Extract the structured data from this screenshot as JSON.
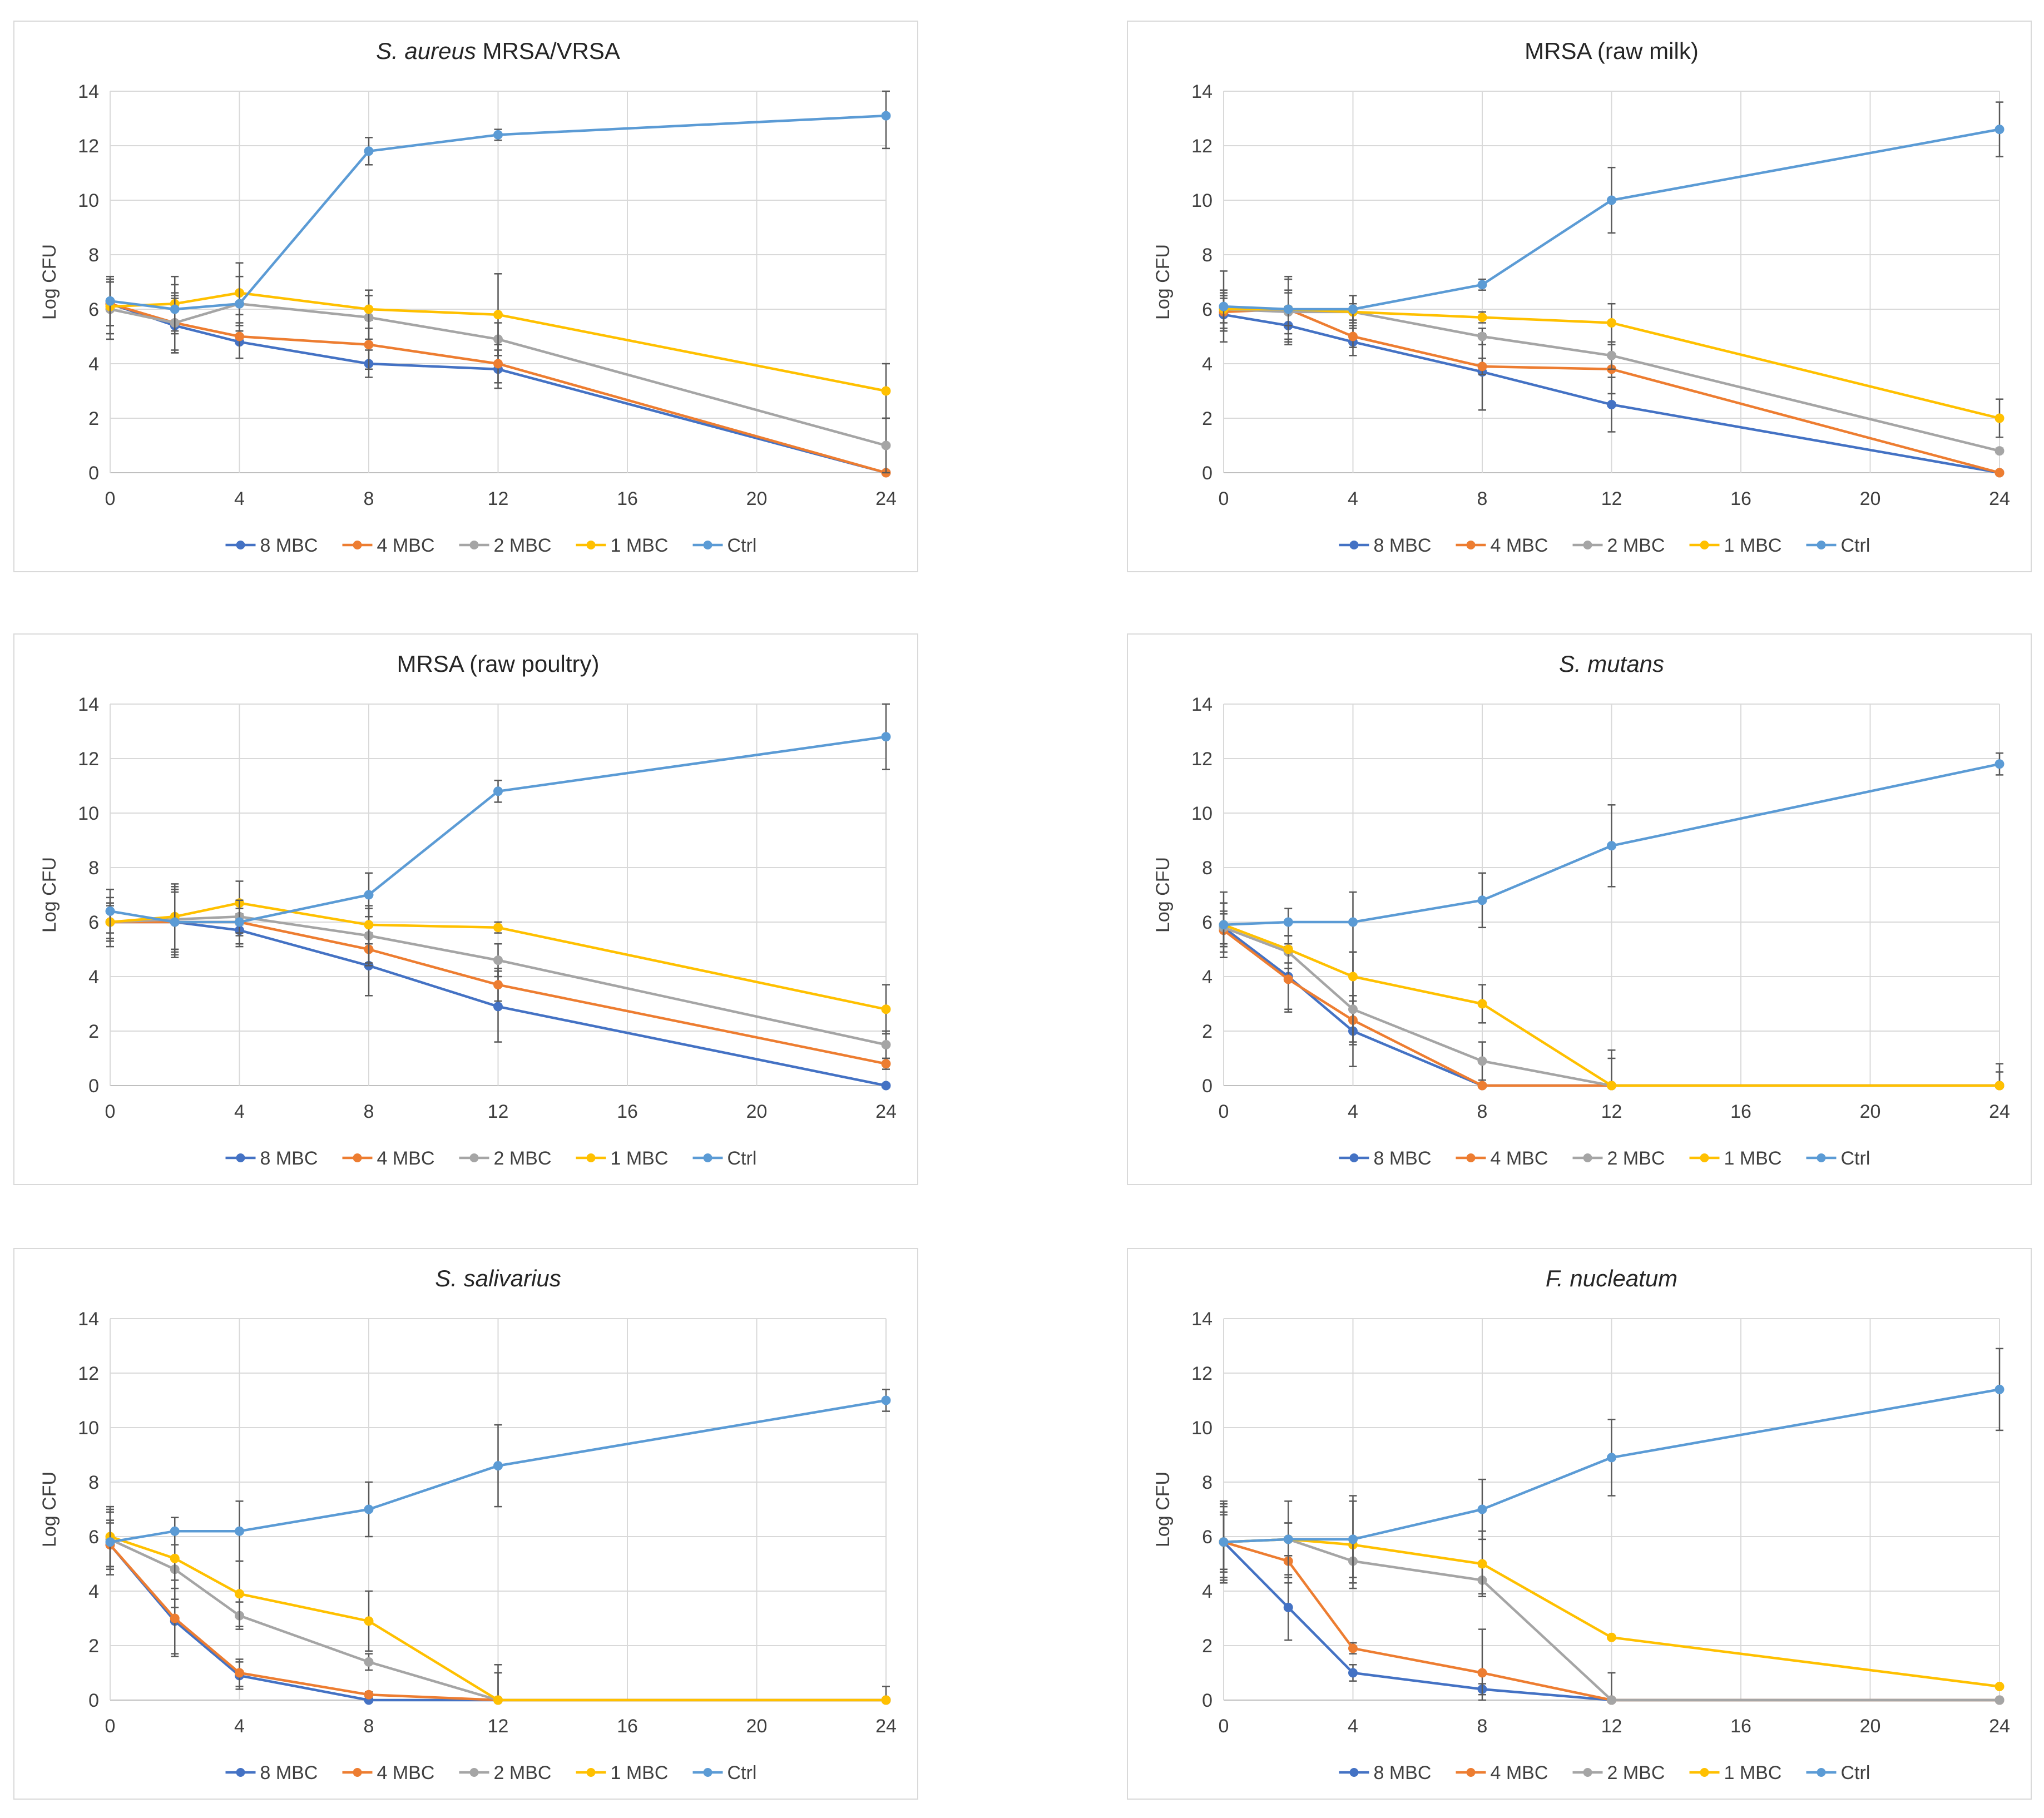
{
  "figure": {
    "layout": "3 rows x 2 columns grid of line charts with error bars",
    "legend_labels": [
      "8 MBC",
      "4 MBC",
      "2 MBC",
      "1 MBC",
      "Ctrl"
    ]
  },
  "series_colors": {
    "8 MBC": "#4472C4",
    "4 MBC": "#ED7D31",
    "2 MBC": "#A5A5A5",
    "1 MBC": "#FFC000",
    "Ctrl": "#5B9BD5"
  },
  "chart_data": [
    {
      "type": "line",
      "title": "MRSA/VRSA",
      "title_italic_prefix": "S. aureus",
      "xlabel": "",
      "ylabel": "Log CFU",
      "xlim": [
        0,
        24
      ],
      "ylim": [
        0,
        14
      ],
      "xticks": [
        0,
        4,
        8,
        12,
        16,
        20,
        24
      ],
      "yticks": [
        0,
        2,
        4,
        6,
        8,
        10,
        12,
        14
      ],
      "grid": true,
      "legend_position": "bottom",
      "x": [
        0,
        2,
        4,
        8,
        12,
        24
      ],
      "series": [
        {
          "name": "8 MBC",
          "values": [
            6.2,
            5.4,
            4.8,
            4.0,
            3.8,
            0.0
          ],
          "errors": [
            0.8,
            1.0,
            0.6,
            0.5,
            0.7,
            0.0
          ]
        },
        {
          "name": "4 MBC",
          "values": [
            6.2,
            5.5,
            5.0,
            4.7,
            4.0,
            0.0
          ],
          "errors": [
            0.8,
            1.0,
            0.8,
            0.9,
            0.7,
            0.0
          ]
        },
        {
          "name": "2 MBC",
          "values": [
            6.0,
            5.5,
            6.2,
            5.7,
            4.9,
            1.0
          ],
          "errors": [
            1.1,
            1.1,
            1.0,
            0.8,
            0.6,
            1.0
          ]
        },
        {
          "name": "1 MBC",
          "values": [
            6.1,
            6.2,
            6.6,
            6.0,
            5.8,
            3.0
          ],
          "errors": [
            1.0,
            1.0,
            1.1,
            0.7,
            1.5,
            1.0
          ]
        },
        {
          "name": "Ctrl",
          "values": [
            6.3,
            6.0,
            6.2,
            11.8,
            12.4,
            13.1
          ],
          "errors": [
            0.9,
            0.9,
            1.0,
            0.5,
            0.2,
            1.2
          ]
        }
      ]
    },
    {
      "type": "line",
      "title": "MRSA (raw milk)",
      "title_italic_prefix": "",
      "xlabel": "",
      "ylabel": "Log CFU",
      "xlim": [
        0,
        24
      ],
      "ylim": [
        0,
        14
      ],
      "xticks": [
        0,
        4,
        8,
        12,
        16,
        20,
        24
      ],
      "yticks": [
        0,
        2,
        4,
        6,
        8,
        10,
        12,
        14
      ],
      "grid": true,
      "legend_position": "bottom",
      "x": [
        0,
        2,
        4,
        8,
        12,
        24
      ],
      "series": [
        {
          "name": "8 MBC",
          "values": [
            5.8,
            5.4,
            4.8,
            3.7,
            2.5,
            0.0
          ],
          "errors": [
            0.6,
            0.7,
            0.5,
            1.4,
            1.0,
            0.0
          ]
        },
        {
          "name": "4 MBC",
          "values": [
            5.9,
            6.0,
            5.0,
            3.9,
            3.8,
            0.0
          ],
          "errors": [
            0.7,
            1.2,
            0.4,
            0.3,
            0.9,
            0.0
          ]
        },
        {
          "name": "2 MBC",
          "values": [
            6.0,
            5.9,
            5.9,
            5.0,
            4.3,
            0.8
          ],
          "errors": [
            0.7,
            0.8,
            0.6,
            0.3,
            0.5,
            0.1
          ]
        },
        {
          "name": "1 MBC",
          "values": [
            6.0,
            6.0,
            5.9,
            5.7,
            5.5,
            2.0
          ],
          "errors": [
            0.5,
            0.6,
            0.3,
            0.2,
            0.7,
            0.7
          ]
        },
        {
          "name": "Ctrl",
          "values": [
            6.1,
            6.0,
            6.0,
            6.9,
            10.0,
            12.6
          ],
          "errors": [
            1.3,
            1.1,
            0.5,
            0.2,
            1.2,
            1.0
          ]
        }
      ]
    },
    {
      "type": "line",
      "title": "MRSA (raw poultry)",
      "title_italic_prefix": "",
      "xlabel": "",
      "ylabel": "Log CFU",
      "xlim": [
        0,
        24
      ],
      "ylim": [
        0,
        14
      ],
      "xticks": [
        0,
        4,
        8,
        12,
        16,
        20,
        24
      ],
      "yticks": [
        0,
        2,
        4,
        6,
        8,
        10,
        12,
        14
      ],
      "grid": true,
      "legend_position": "bottom",
      "x": [
        0,
        2,
        4,
        8,
        12,
        24
      ],
      "series": [
        {
          "name": "8 MBC",
          "values": [
            6.0,
            6.0,
            5.7,
            4.4,
            2.9,
            0.0
          ],
          "errors": [
            0.7,
            1.2,
            0.6,
            1.1,
            1.3,
            0.0
          ]
        },
        {
          "name": "4 MBC",
          "values": [
            6.0,
            6.0,
            6.0,
            5.0,
            3.7,
            0.8
          ],
          "errors": [
            0.6,
            1.1,
            0.5,
            0.6,
            0.6,
            0.2
          ]
        },
        {
          "name": "2 MBC",
          "values": [
            6.0,
            6.1,
            6.2,
            5.5,
            4.6,
            1.5
          ],
          "errors": [
            0.7,
            1.1,
            0.6,
            1.0,
            0.6,
            0.5
          ]
        },
        {
          "name": "1 MBC",
          "values": [
            6.0,
            6.2,
            6.7,
            5.9,
            5.8,
            2.8
          ],
          "errors": [
            0.9,
            1.2,
            0.8,
            0.7,
            0.2,
            0.9
          ]
        },
        {
          "name": "Ctrl",
          "values": [
            6.4,
            6.0,
            6.0,
            7.0,
            10.8,
            12.8
          ],
          "errors": [
            0.8,
            1.3,
            0.8,
            0.8,
            0.4,
            1.2
          ]
        }
      ]
    },
    {
      "type": "line",
      "title": "",
      "title_italic_prefix": "S. mutans",
      "xlabel": "",
      "ylabel": "Log CFU",
      "xlim": [
        0,
        24
      ],
      "ylim": [
        0,
        14
      ],
      "xticks": [
        0,
        4,
        8,
        12,
        16,
        20,
        24
      ],
      "yticks": [
        0,
        2,
        4,
        6,
        8,
        10,
        12,
        14
      ],
      "grid": true,
      "legend_position": "bottom",
      "x": [
        0,
        2,
        4,
        8,
        12,
        24
      ],
      "series": [
        {
          "name": "8 MBC",
          "values": [
            5.8,
            4.0,
            2.0,
            0.0,
            0.0,
            0.0
          ],
          "errors": [
            0.6,
            1.2,
            0.4,
            0.0,
            0.0,
            0.0
          ]
        },
        {
          "name": "4 MBC",
          "values": [
            5.7,
            3.9,
            2.4,
            0.0,
            0.0,
            0.0
          ],
          "errors": [
            0.6,
            1.2,
            0.9,
            0.0,
            0.0,
            0.0
          ]
        },
        {
          "name": "2 MBC",
          "values": [
            5.8,
            4.9,
            2.8,
            0.9,
            0.0,
            0.0
          ],
          "errors": [
            0.9,
            0.6,
            2.1,
            0.7,
            1.3,
            0.5
          ]
        },
        {
          "name": "1 MBC",
          "values": [
            5.9,
            5.0,
            4.0,
            3.0,
            0.0,
            0.0
          ],
          "errors": [
            0.8,
            0.5,
            0.9,
            0.7,
            1.0,
            0.8
          ]
        },
        {
          "name": "Ctrl",
          "values": [
            5.9,
            6.0,
            6.0,
            6.8,
            8.8,
            11.8
          ],
          "errors": [
            1.2,
            0.5,
            1.1,
            1.0,
            1.5,
            0.4
          ]
        }
      ]
    },
    {
      "type": "line",
      "title": "",
      "title_italic_prefix": "S. salivarius",
      "xlabel": "",
      "ylabel": "Log CFU",
      "xlim": [
        0,
        24
      ],
      "ylim": [
        0,
        14
      ],
      "xticks": [
        0,
        4,
        8,
        12,
        16,
        20,
        24
      ],
      "yticks": [
        0,
        2,
        4,
        6,
        8,
        10,
        12,
        14
      ],
      "grid": true,
      "legend_position": "bottom",
      "x": [
        0,
        2,
        4,
        8,
        12,
        24
      ],
      "series": [
        {
          "name": "8 MBC",
          "values": [
            5.7,
            2.9,
            0.9,
            0.0,
            0.0,
            0.0
          ],
          "errors": [
            0.9,
            1.2,
            0.5,
            0.0,
            0.0,
            0.0
          ]
        },
        {
          "name": "4 MBC",
          "values": [
            5.7,
            3.0,
            1.0,
            0.2,
            0.0,
            0.0
          ],
          "errors": [
            0.8,
            1.4,
            0.5,
            0.1,
            0.0,
            0.0
          ]
        },
        {
          "name": "2 MBC",
          "values": [
            5.9,
            4.8,
            3.1,
            1.4,
            0.0,
            0.0
          ],
          "errors": [
            1.0,
            1.4,
            0.5,
            0.3,
            1.0,
            0.0
          ]
        },
        {
          "name": "1 MBC",
          "values": [
            6.0,
            5.2,
            3.9,
            2.9,
            0.0,
            0.0
          ],
          "errors": [
            1.1,
            1.5,
            1.2,
            1.1,
            1.3,
            0.5
          ]
        },
        {
          "name": "Ctrl",
          "values": [
            5.8,
            6.2,
            6.2,
            7.0,
            8.6,
            11.0
          ],
          "errors": [
            1.2,
            0.5,
            1.1,
            1.0,
            1.5,
            0.4
          ]
        }
      ]
    },
    {
      "type": "line",
      "title": "",
      "title_italic_prefix": "F. nucleatum",
      "xlabel": "",
      "ylabel": "Log CFU",
      "xlim": [
        0,
        24
      ],
      "ylim": [
        0,
        14
      ],
      "xticks": [
        0,
        4,
        8,
        12,
        16,
        20,
        24
      ],
      "yticks": [
        0,
        2,
        4,
        6,
        8,
        10,
        12,
        14
      ],
      "grid": true,
      "legend_position": "bottom",
      "x": [
        0,
        2,
        4,
        8,
        12,
        24
      ],
      "series": [
        {
          "name": "8 MBC",
          "values": [
            5.8,
            3.4,
            1.0,
            0.4,
            0.0,
            0.0
          ],
          "errors": [
            1.3,
            1.2,
            0.3,
            0.2,
            0.0,
            0.0
          ]
        },
        {
          "name": "4 MBC",
          "values": [
            5.8,
            5.1,
            1.9,
            1.0,
            0.0,
            0.0
          ],
          "errors": [
            1.0,
            0.8,
            0.2,
            1.6,
            0.0,
            0.0
          ]
        },
        {
          "name": "2 MBC",
          "values": [
            5.8,
            5.9,
            5.1,
            4.4,
            0.0,
            0.0
          ],
          "errors": [
            1.4,
            0.6,
            0.6,
            0.5,
            1.0,
            0.0
          ]
        },
        {
          "name": "1 MBC",
          "values": [
            5.8,
            5.9,
            5.7,
            5.0,
            2.3,
            0.5
          ],
          "errors": [
            1.1,
            0.6,
            1.6,
            1.2,
            0.0,
            0.0
          ]
        },
        {
          "name": "Ctrl",
          "values": [
            5.8,
            5.9,
            5.9,
            7.0,
            8.9,
            11.4
          ],
          "errors": [
            1.5,
            1.4,
            1.6,
            1.1,
            1.4,
            1.5
          ]
        }
      ]
    }
  ]
}
